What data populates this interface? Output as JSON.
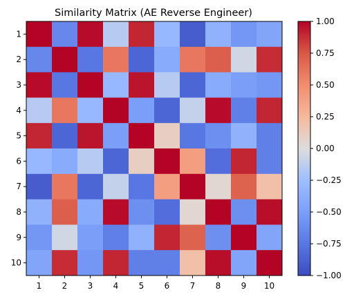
{
  "chart_data": {
    "type": "heatmap",
    "title": "Similarity Matrix (AE Reverse Engineer)",
    "xlabel": "",
    "ylabel": "",
    "x_categories": [
      "1",
      "2",
      "3",
      "4",
      "5",
      "6",
      "7",
      "8",
      "9",
      "10"
    ],
    "y_categories": [
      "1",
      "2",
      "3",
      "4",
      "5",
      "6",
      "7",
      "8",
      "9",
      "10"
    ],
    "values": [
      [
        1.0,
        -0.65,
        0.98,
        -0.15,
        0.9,
        -0.3,
        -0.9,
        -0.35,
        -0.55,
        -0.45
      ],
      [
        -0.65,
        1.0,
        -0.75,
        0.6,
        -0.85,
        -0.4,
        0.6,
        0.72,
        -0.05,
        0.88
      ],
      [
        0.98,
        -0.75,
        1.0,
        -0.3,
        0.95,
        -0.15,
        -0.85,
        -0.4,
        -0.5,
        -0.55
      ],
      [
        -0.15,
        0.6,
        -0.3,
        1.0,
        -0.5,
        -0.85,
        -0.1,
        0.98,
        -0.7,
        0.9
      ],
      [
        0.9,
        -0.85,
        0.95,
        -0.5,
        1.0,
        0.1,
        -0.75,
        -0.6,
        -0.35,
        -0.7
      ],
      [
        -0.3,
        -0.4,
        -0.15,
        -0.85,
        0.1,
        1.0,
        0.4,
        -0.8,
        0.9,
        -0.7
      ],
      [
        -0.9,
        0.6,
        -0.85,
        -0.1,
        -0.75,
        0.4,
        1.0,
        0.05,
        0.7,
        0.2
      ],
      [
        -0.35,
        0.72,
        -0.4,
        0.98,
        -0.6,
        -0.8,
        0.05,
        1.0,
        -0.6,
        0.97
      ],
      [
        -0.55,
        -0.05,
        -0.5,
        -0.7,
        -0.35,
        0.9,
        0.7,
        -0.6,
        1.0,
        -0.45
      ],
      [
        -0.45,
        0.88,
        -0.55,
        0.9,
        -0.7,
        -0.7,
        0.2,
        0.97,
        -0.45,
        1.0
      ]
    ],
    "colormap": "coolwarm",
    "vmin": -1.0,
    "vmax": 1.0,
    "colorbar_ticks": [
      "1.00",
      "0.75",
      "0.50",
      "0.25",
      "0.00",
      "−0.25",
      "−0.50",
      "−0.75",
      "−1.00"
    ],
    "colorbar_tick_values": [
      1.0,
      0.75,
      0.5,
      0.25,
      0.0,
      -0.25,
      -0.5,
      -0.75,
      -1.0
    ],
    "grid": false
  }
}
